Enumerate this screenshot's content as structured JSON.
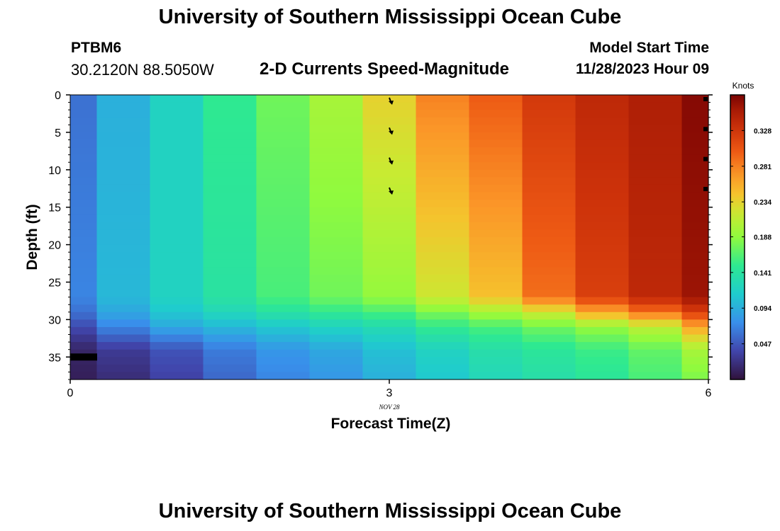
{
  "header": {
    "title": "University of Southern Mississippi Ocean Cube",
    "station_id": "PTBM6",
    "station_coords": "30.2120N  88.5050W",
    "subtitle": "2-D Currents Speed-Magnitude",
    "model_start_label": "Model Start Time",
    "model_start_value": "11/28/2023 Hour 09"
  },
  "footer": {
    "title": "University of Southern Mississippi Ocean Cube"
  },
  "chart_data": {
    "type": "heatmap",
    "title": "2-D Currents Speed-Magnitude",
    "xlabel": "Forecast Time(Z)",
    "ylabel": "Depth (ft)",
    "x_ticks": [
      "0",
      "3",
      "6"
    ],
    "x_date_label": "NOV 28",
    "y_ticks": [
      "0",
      "5",
      "10",
      "15",
      "20",
      "25",
      "30",
      "35"
    ],
    "xlim": [
      0,
      6
    ],
    "ylim": [
      38,
      0
    ],
    "y_inverted": true,
    "colorbar": {
      "unit_label": "Knots",
      "ticks": [
        "0.047",
        "0.094",
        "0.141",
        "0.188",
        "0.234",
        "0.281",
        "0.328"
      ],
      "min": 0.0,
      "max": 0.375,
      "colormap": "turbo"
    },
    "time_columns": [
      0,
      0.5,
      1,
      1.5,
      2,
      2.5,
      3,
      3.5,
      4,
      4.5,
      5,
      5.5,
      6
    ],
    "profile_depths_ft": [
      0,
      27,
      29,
      31,
      34,
      38
    ],
    "profiles_knots": [
      [
        0.06,
        0.07,
        0.06,
        0.04,
        0.015,
        0.01
      ],
      [
        0.095,
        0.1,
        0.09,
        0.07,
        0.03,
        0.02
      ],
      [
        0.12,
        0.12,
        0.11,
        0.09,
        0.045,
        0.035
      ],
      [
        0.15,
        0.14,
        0.125,
        0.1,
        0.065,
        0.055
      ],
      [
        0.175,
        0.16,
        0.14,
        0.11,
        0.08,
        0.07
      ],
      [
        0.2,
        0.175,
        0.15,
        0.12,
        0.09,
        0.08
      ],
      [
        0.235,
        0.19,
        0.16,
        0.13,
        0.105,
        0.095
      ],
      [
        0.28,
        0.22,
        0.18,
        0.15,
        0.12,
        0.11
      ],
      [
        0.3,
        0.245,
        0.2,
        0.16,
        0.135,
        0.125
      ],
      [
        0.325,
        0.29,
        0.22,
        0.175,
        0.145,
        0.135
      ],
      [
        0.34,
        0.32,
        0.26,
        0.19,
        0.155,
        0.145
      ],
      [
        0.35,
        0.34,
        0.29,
        0.21,
        0.17,
        0.16
      ],
      [
        0.37,
        0.36,
        0.32,
        0.26,
        0.2,
        0.18
      ]
    ],
    "vectors": [
      {
        "time": 3,
        "depths_ft": [
          0,
          4,
          8,
          12
        ]
      },
      {
        "time": 6,
        "depths_ft": [
          0,
          4,
          8,
          12
        ]
      }
    ]
  }
}
